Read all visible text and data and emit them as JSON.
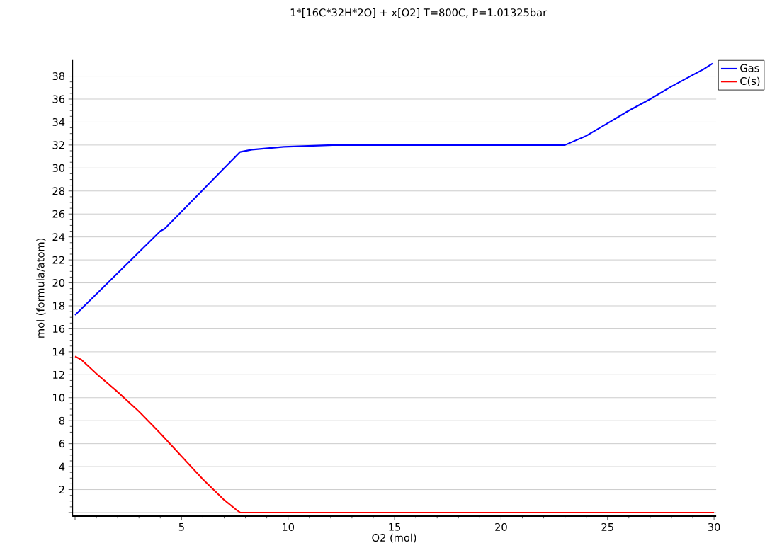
{
  "chart_data": {
    "type": "line",
    "title": "1*[16C*32H*2O] + x[O2]    T=800C, P=1.01325bar",
    "xlabel": "O2 (mol)",
    "ylabel": "mol (formula/atom)",
    "xlim": [
      -0.13,
      30.1
    ],
    "ylim": [
      -0.3,
      39.4
    ],
    "xticks": [
      {
        "value": 0,
        "label": null
      },
      5,
      10,
      15,
      20,
      25,
      30
    ],
    "yticks": [
      {
        "value": 0,
        "label": null
      },
      2,
      4,
      6,
      8,
      10,
      12,
      14,
      16,
      18,
      20,
      22,
      24,
      26,
      28,
      30,
      32,
      34,
      36,
      38
    ],
    "grid": "y",
    "legend": "top right",
    "marker": "none",
    "line_style": "solid",
    "series": [
      {
        "name": "Gas",
        "color": "#0000ff",
        "x": [
          0,
          4,
          4.2,
          7.75,
          8.3,
          9.8,
          12.1,
          23,
          23.5,
          24,
          25,
          26,
          27,
          28,
          29,
          29.5,
          29.93
        ],
        "values": [
          17.2,
          24.5,
          24.7,
          31.4,
          31.6,
          31.85,
          32,
          32,
          32.4,
          32.8,
          33.9,
          35,
          36,
          37.1,
          38.1,
          38.6,
          39.1
        ]
      },
      {
        "name": "C(s)",
        "color": "#ff0000",
        "x": [
          0,
          0.3,
          1,
          2,
          3,
          4,
          5,
          6,
          7,
          7.6,
          7.75,
          30
        ],
        "values": [
          13.6,
          13.3,
          12.1,
          10.5,
          8.8,
          6.9,
          4.9,
          2.9,
          1.1,
          0.2,
          0,
          0
        ]
      }
    ]
  }
}
